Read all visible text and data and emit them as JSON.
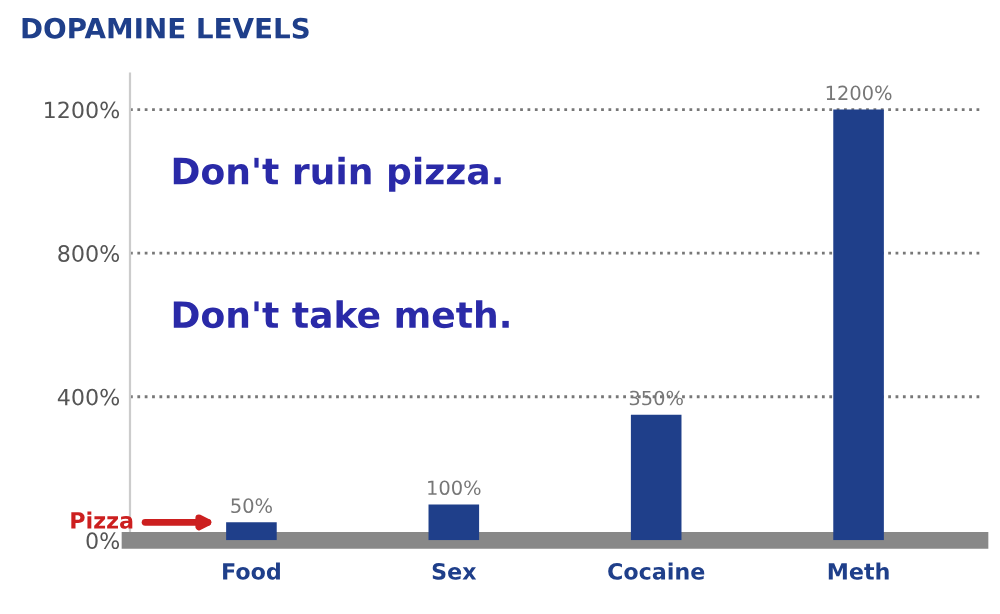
{
  "chart_data": {
    "type": "bar",
    "title": "DOPAMINE LEVELS",
    "categories": [
      "Food",
      "Sex",
      "Cocaine",
      "Meth"
    ],
    "values": [
      50,
      100,
      350,
      1200
    ],
    "color": "#1f3f8a",
    "value_labels": [
      "50%",
      "100%",
      "350%",
      "1200%"
    ],
    "ylim": [
      0,
      1300
    ],
    "yticks": [
      {
        "value": 0,
        "label": "0%"
      },
      {
        "value": 400,
        "label": "400%"
      },
      {
        "value": 800,
        "label": "800%"
      },
      {
        "value": 1200,
        "label": "1200%"
      }
    ],
    "grid": "y",
    "annotations": [
      "Don't ruin pizza.",
      "Don't take meth.",
      "Pizza"
    ]
  }
}
